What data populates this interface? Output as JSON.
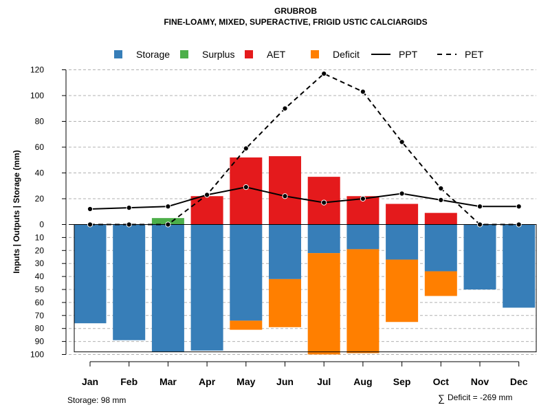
{
  "chart_data": {
    "type": "bar",
    "title": "GRUBROB",
    "subtitle": "FINE-LOAMY, MIXED, SUPERACTIVE, FRIGID USTIC CALCIARGIDS",
    "ylabel": "Inputs | Outputs | Storage    (mm)",
    "categories": [
      "Jan",
      "Feb",
      "Mar",
      "Apr",
      "May",
      "Jun",
      "Jul",
      "Aug",
      "Sep",
      "Oct",
      "Nov",
      "Dec"
    ],
    "upper_ticks": [
      0,
      20,
      40,
      60,
      80,
      100,
      120
    ],
    "lower_ticks": [
      10,
      20,
      30,
      40,
      50,
      60,
      70,
      80,
      90,
      100
    ],
    "upper_ylim": [
      0,
      120
    ],
    "lower_ylim": [
      0,
      100
    ],
    "legend": [
      {
        "key": "storage",
        "label": "Storage",
        "type": "box",
        "color": "#377EB8"
      },
      {
        "key": "surplus",
        "label": "Surplus",
        "type": "box",
        "color": "#4DAF4A"
      },
      {
        "key": "aet",
        "label": "AET",
        "type": "box",
        "color": "#E41A1C"
      },
      {
        "key": "deficit",
        "label": "Deficit",
        "type": "box",
        "color": "#FF7F00"
      },
      {
        "key": "ppt",
        "label": "PPT",
        "type": "solid",
        "color": "#000000"
      },
      {
        "key": "pet",
        "label": "PET",
        "type": "dashed",
        "color": "#000000"
      }
    ],
    "series": [
      {
        "name": "AET",
        "values": [
          0,
          0,
          0,
          22,
          52,
          53,
          37,
          22,
          16,
          9,
          0,
          0
        ]
      },
      {
        "name": "Surplus",
        "values": [
          0,
          0,
          5,
          0,
          0,
          0,
          0,
          0,
          0,
          0,
          0,
          0
        ]
      },
      {
        "name": "Storage",
        "values": [
          76,
          89,
          98,
          97,
          74,
          42,
          22,
          19,
          27,
          36,
          50,
          64
        ]
      },
      {
        "name": "Deficit",
        "values": [
          0,
          0,
          0,
          0,
          7,
          37,
          78,
          80,
          48,
          19,
          0,
          0
        ]
      },
      {
        "name": "PPT",
        "values": [
          12,
          13,
          14,
          23,
          29,
          22,
          17,
          20,
          24,
          19,
          14,
          14
        ]
      },
      {
        "name": "PET",
        "values": [
          0,
          0,
          0,
          23,
          59,
          90,
          117,
          103,
          64,
          28,
          0,
          0
        ]
      }
    ],
    "storage_capacity": 98,
    "storage_note": "Storage: 98 mm",
    "deficit_symbol": "∑",
    "deficit_note": "Deficit = -269 mm"
  }
}
